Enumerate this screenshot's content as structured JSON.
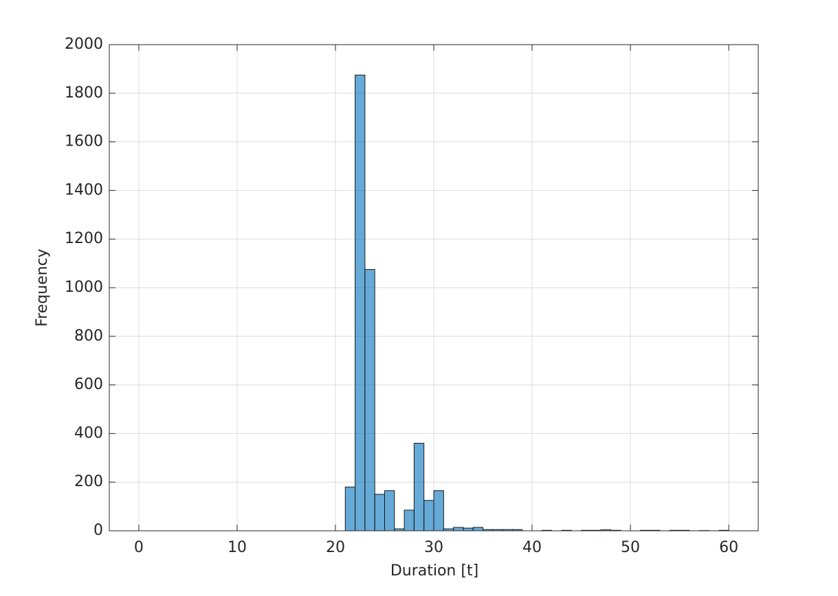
{
  "chart_data": {
    "type": "histogram",
    "xlabel": "Duration [t]",
    "ylabel": "Frequency",
    "bins": [
      21,
      22,
      23,
      24,
      25,
      26,
      27,
      28,
      29,
      30,
      31,
      32,
      33,
      34,
      35,
      36,
      37,
      38,
      39,
      40,
      41,
      42,
      43,
      44,
      45,
      46,
      47,
      48,
      49,
      50,
      51,
      52,
      53,
      54,
      55,
      56,
      57,
      58,
      59,
      60,
      61
    ],
    "values": [
      180,
      1875,
      1075,
      150,
      165,
      8,
      85,
      360,
      125,
      165,
      8,
      14,
      11,
      14,
      5,
      5,
      5,
      5,
      0,
      0,
      2,
      0,
      2,
      0,
      2,
      2,
      4,
      2,
      0,
      0,
      2,
      2,
      0,
      2,
      2,
      0,
      1,
      0,
      2,
      0
    ],
    "color": "#0072bd",
    "face_alpha": 0.6,
    "xlim": [
      -3,
      63
    ],
    "xticks": [
      0,
      10,
      20,
      30,
      40,
      50,
      60
    ],
    "ylim": [
      0,
      2000
    ],
    "yticks": [
      0,
      200,
      400,
      600,
      800,
      1000,
      1200,
      1400,
      1600,
      1800,
      2000
    ],
    "grid": true
  }
}
